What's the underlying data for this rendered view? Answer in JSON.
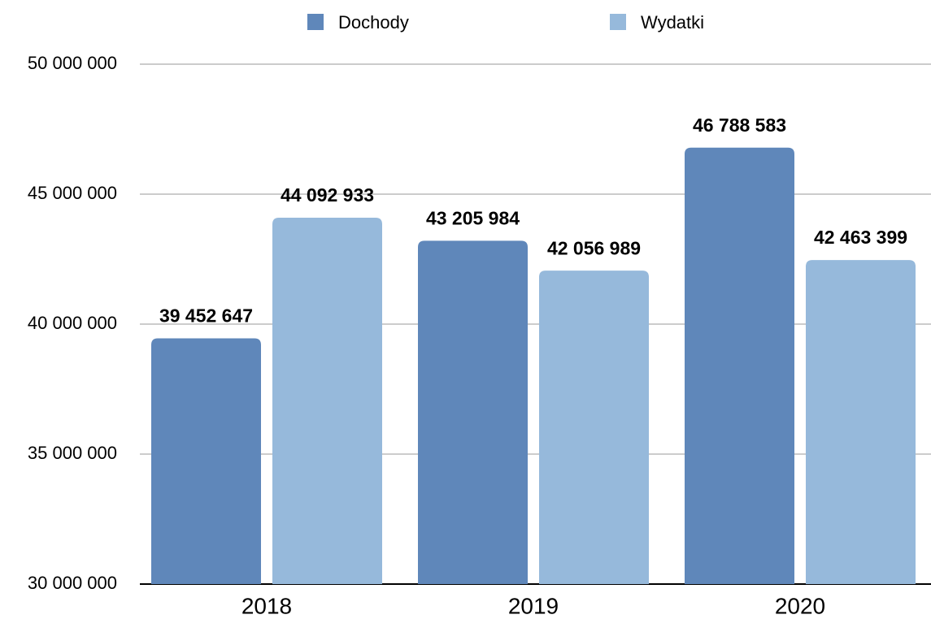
{
  "chart_data": {
    "type": "bar",
    "categories": [
      "2018",
      "2019",
      "2020"
    ],
    "series": [
      {
        "name": "Dochody",
        "color": "#5f87ba",
        "values": [
          39452647,
          43205984,
          46788583
        ],
        "value_labels": [
          "39 452 647",
          "43 205 984",
          "46 788 583"
        ]
      },
      {
        "name": "Wydatki",
        "color": "#96b9db",
        "values": [
          44092933,
          42056989,
          42463399
        ],
        "value_labels": [
          "44 092 933",
          "42 056 989",
          "42 463 399"
        ]
      }
    ],
    "ylim": [
      30000000,
      50000000
    ],
    "yticks": [
      {
        "value": 30000000,
        "label": "30 000 000"
      },
      {
        "value": 35000000,
        "label": "35 000 000"
      },
      {
        "value": 40000000,
        "label": "40 000 000"
      },
      {
        "value": 45000000,
        "label": "45 000 000"
      },
      {
        "value": 50000000,
        "label": "50 000 000"
      }
    ],
    "grid": true,
    "legend": "top"
  }
}
